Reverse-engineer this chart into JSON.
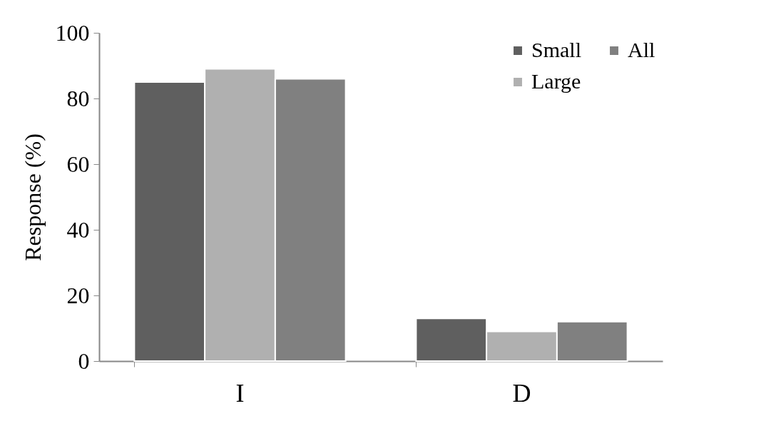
{
  "chart_data": {
    "type": "bar",
    "ylabel": "Response   (%)",
    "categories": [
      "I",
      "D"
    ],
    "series": [
      {
        "name": "Small",
        "color": "#5f5f5f",
        "values": [
          85,
          13
        ]
      },
      {
        "name": "Large",
        "color": "#b0b0b0",
        "values": [
          89,
          9
        ]
      },
      {
        "name": "All",
        "color": "#808080",
        "values": [
          86,
          12
        ]
      }
    ],
    "ylim": [
      0,
      100
    ],
    "yticks": [
      0,
      20,
      40,
      60,
      80,
      100
    ],
    "grid": false,
    "legend": "top right"
  }
}
